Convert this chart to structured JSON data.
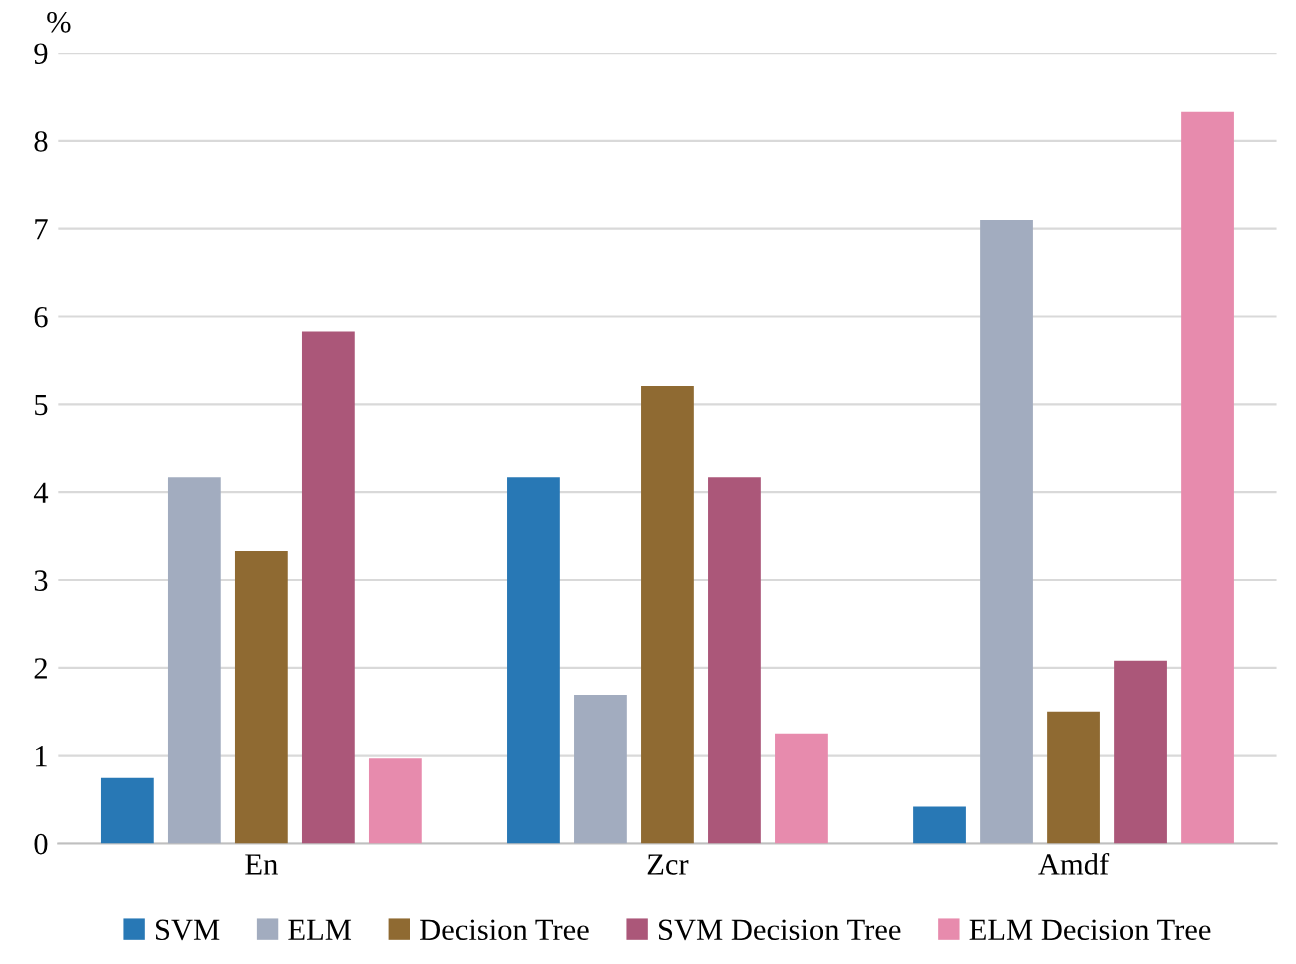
{
  "chart_data": {
    "type": "bar",
    "ylabel": "%",
    "categories": [
      "En",
      "Zcr",
      "Amdf"
    ],
    "series": [
      {
        "name": "SVM",
        "color": "#2878b5",
        "values": [
          0.75,
          4.17,
          0.42
        ]
      },
      {
        "name": "ELM",
        "color": "#a2acbf",
        "values": [
          4.17,
          1.69,
          7.1
        ]
      },
      {
        "name": "Decision Tree",
        "color": "#8f6a32",
        "values": [
          3.33,
          5.21,
          1.5
        ]
      },
      {
        "name": "SVM Decision Tree",
        "color": "#ab5779",
        "values": [
          5.83,
          4.17,
          2.08
        ]
      },
      {
        "name": "ELM Decision Tree",
        "color": "#e78bad",
        "values": [
          0.97,
          1.25,
          8.33
        ]
      }
    ],
    "ylim": [
      0,
      9
    ],
    "yticks": [
      0,
      1,
      2,
      3,
      4,
      5,
      6,
      7,
      8,
      9
    ],
    "grid": "y",
    "legend": "bottom"
  }
}
